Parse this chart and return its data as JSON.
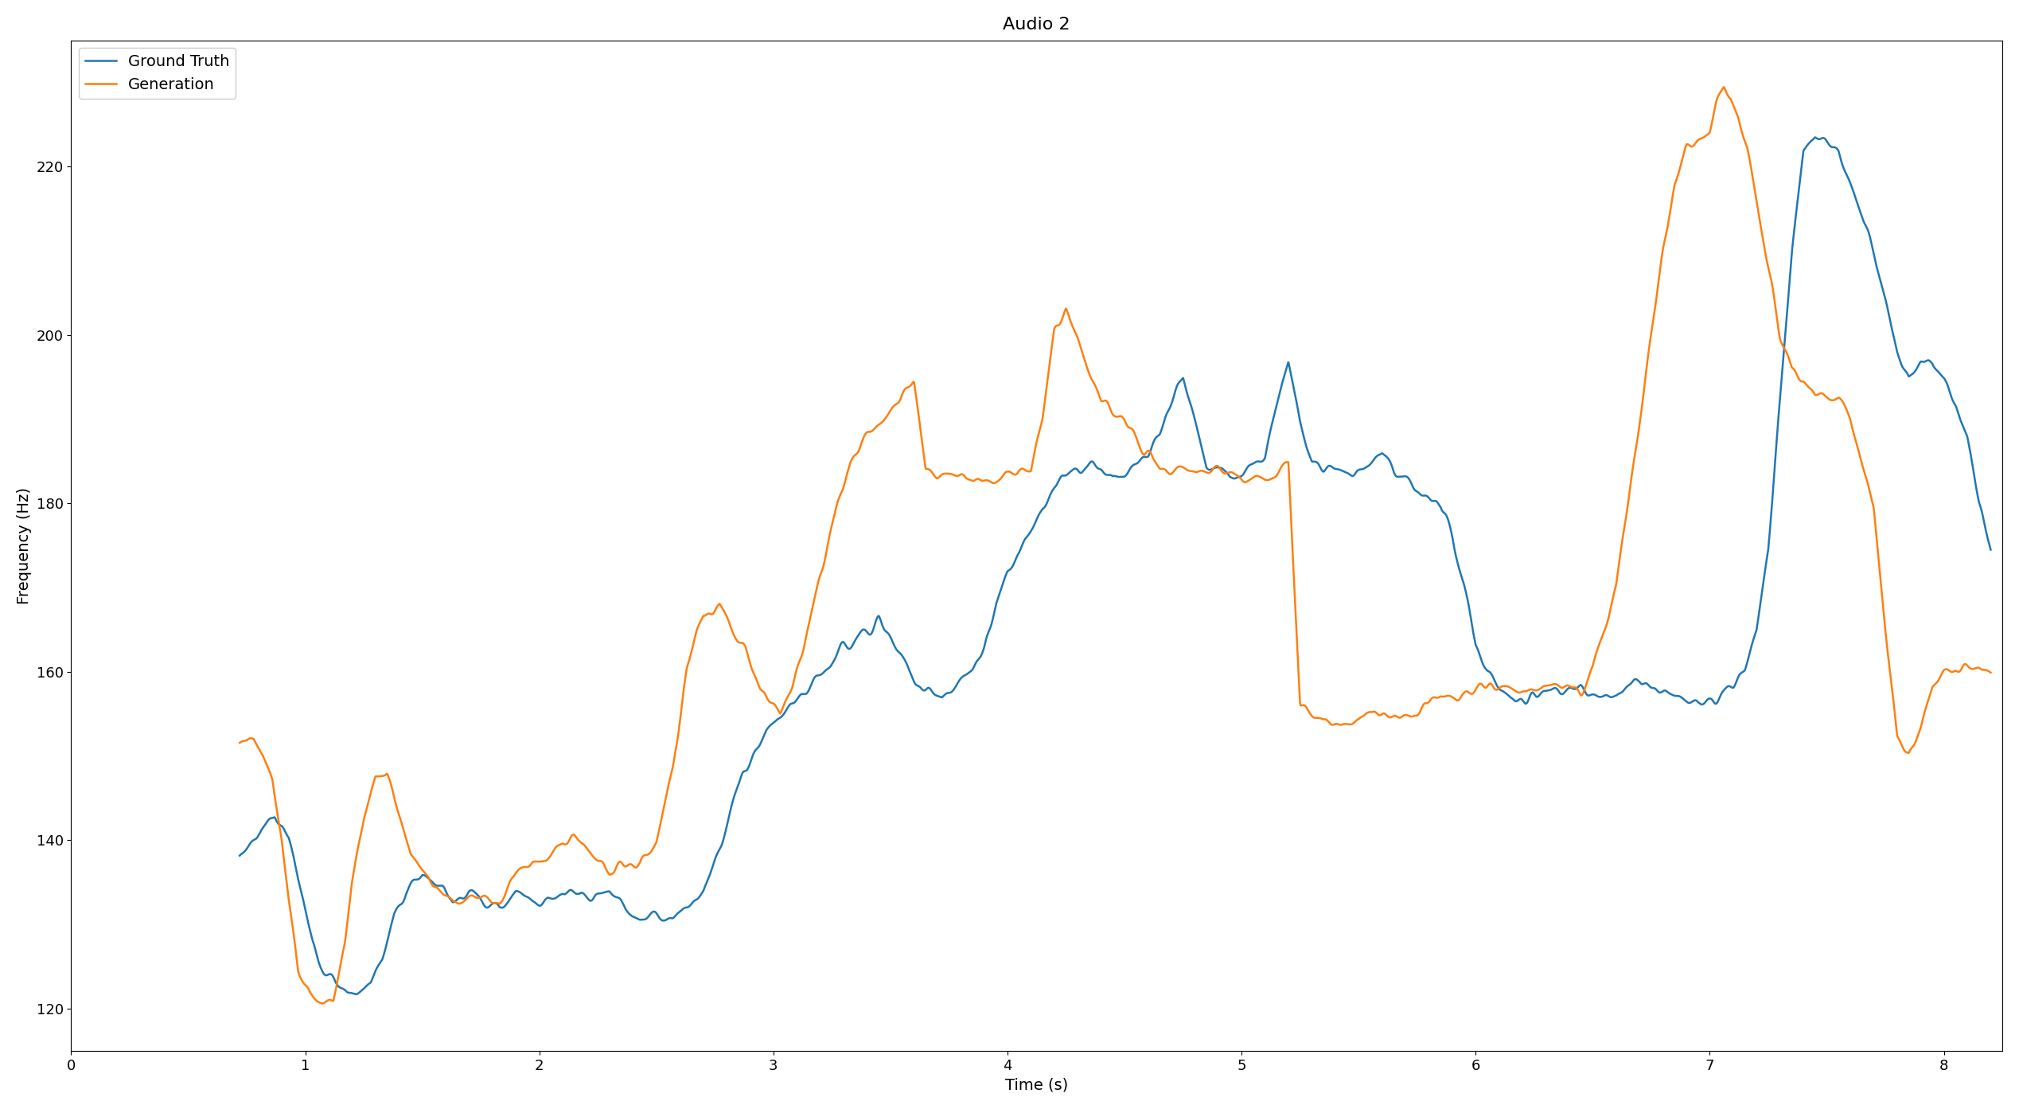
{
  "title": "Audio 2",
  "xlabel": "Time (s)",
  "ylabel": "Frequency (Hz)",
  "xlim": [
    0,
    8.25
  ],
  "ylim": [
    115,
    235
  ],
  "xticks": [
    0,
    1,
    2,
    3,
    4,
    5,
    6,
    7,
    8
  ],
  "yticks": [
    120,
    140,
    160,
    180,
    200,
    220
  ],
  "legend_labels": [
    "Ground Truth",
    "Generation"
  ],
  "line_colors": [
    "#1f77b4",
    "#ff7f0e"
  ],
  "line_width": 1.8,
  "background_color": "#ffffff",
  "title_fontsize": 16,
  "axis_fontsize": 14,
  "legend_fontsize": 14,
  "tick_fontsize": 13
}
